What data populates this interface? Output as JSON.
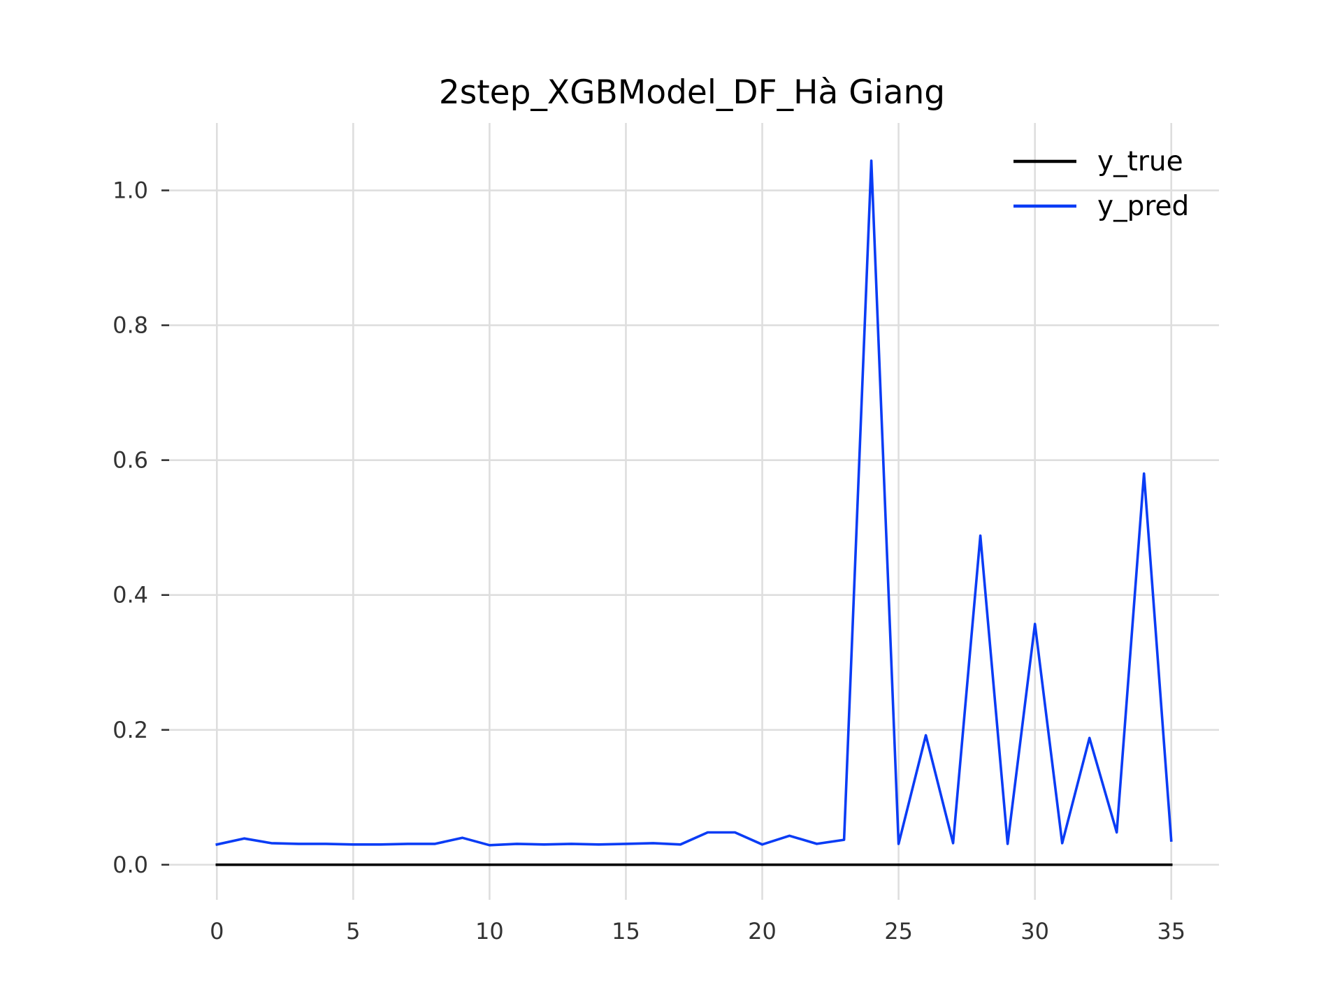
{
  "chart_data": {
    "type": "line",
    "title": "2step_XGBModel_DF_Hà Giang",
    "xlabel": "",
    "ylabel": "",
    "xlim": [
      -1.75,
      36.75
    ],
    "ylim": [
      -0.052,
      1.1
    ],
    "xticks": [
      0,
      5,
      10,
      15,
      20,
      25,
      30,
      35
    ],
    "yticks": [
      0.0,
      0.2,
      0.4,
      0.6,
      0.8,
      1.0
    ],
    "grid": true,
    "legend_position": "top-right",
    "x": [
      0,
      1,
      2,
      3,
      4,
      5,
      6,
      7,
      8,
      9,
      10,
      11,
      12,
      13,
      14,
      15,
      16,
      17,
      18,
      19,
      20,
      21,
      22,
      23,
      24,
      25,
      26,
      27,
      28,
      29,
      30,
      31,
      32,
      33,
      34,
      35
    ],
    "series": [
      {
        "name": "y_true",
        "color": "#000000",
        "values": [
          0,
          0,
          0,
          0,
          0,
          0,
          0,
          0,
          0,
          0,
          0,
          0,
          0,
          0,
          0,
          0,
          0,
          0,
          0,
          0,
          0,
          0,
          0,
          0,
          0,
          0,
          0,
          0,
          0,
          0,
          0,
          0,
          0,
          0,
          0,
          0
        ]
      },
      {
        "name": "y_pred",
        "color": "#0a3cf5",
        "values": [
          0.03,
          0.039,
          0.032,
          0.031,
          0.031,
          0.03,
          0.03,
          0.031,
          0.031,
          0.04,
          0.029,
          0.031,
          0.03,
          0.031,
          0.03,
          0.031,
          0.032,
          0.03,
          0.048,
          0.048,
          0.03,
          0.043,
          0.031,
          0.037,
          1.044,
          0.031,
          0.192,
          0.032,
          0.488,
          0.031,
          0.357,
          0.032,
          0.188,
          0.048,
          0.58,
          0.036
        ]
      }
    ]
  }
}
